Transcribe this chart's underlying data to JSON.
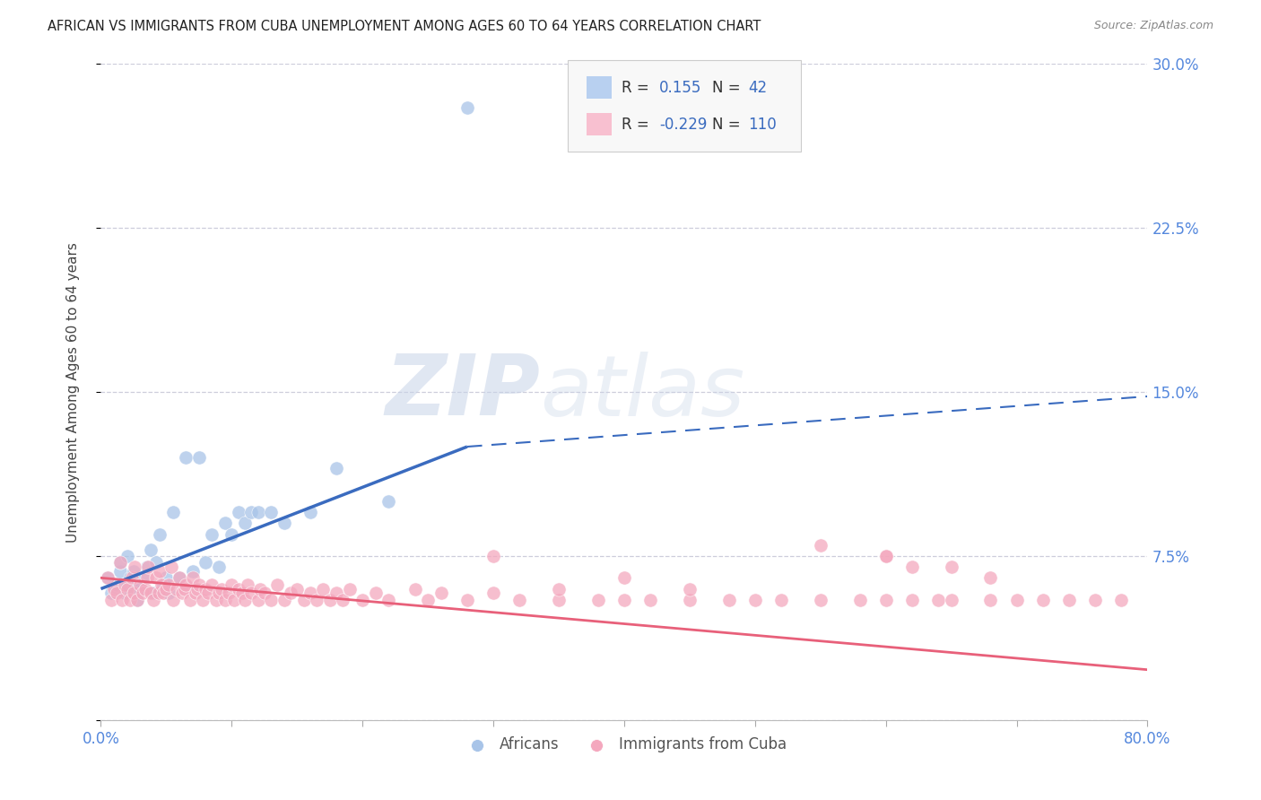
{
  "title": "AFRICAN VS IMMIGRANTS FROM CUBA UNEMPLOYMENT AMONG AGES 60 TO 64 YEARS CORRELATION CHART",
  "source": "Source: ZipAtlas.com",
  "ylabel": "Unemployment Among Ages 60 to 64 years",
  "xlim": [
    0.0,
    0.8
  ],
  "ylim": [
    0.0,
    0.3
  ],
  "yticks": [
    0.0,
    0.075,
    0.15,
    0.225,
    0.3
  ],
  "ytick_labels": [
    "",
    "7.5%",
    "15.0%",
    "22.5%",
    "30.0%"
  ],
  "african_color": "#a8c4e8",
  "cuba_color": "#f4a8be",
  "trend_african_color": "#3a6bbf",
  "trend_cuba_color": "#e8607a",
  "legend_box_color_african": "#b8d0f0",
  "legend_box_color_cuba": "#f8c0d0",
  "R_african": 0.155,
  "N_african": 42,
  "R_cuba": -0.229,
  "N_cuba": 110,
  "af_trend_x0": 0.0,
  "af_trend_y0": 0.06,
  "af_trend_x1": 0.28,
  "af_trend_y1": 0.125,
  "af_trend_dash_x0": 0.28,
  "af_trend_dash_y0": 0.125,
  "af_trend_dash_x1": 0.8,
  "af_trend_dash_y1": 0.148,
  "cu_trend_x0": 0.0,
  "cu_trend_y0": 0.065,
  "cu_trend_x1": 0.8,
  "cu_trend_y1": 0.023,
  "african_x": [
    0.005,
    0.008,
    0.012,
    0.015,
    0.015,
    0.018,
    0.02,
    0.02,
    0.022,
    0.025,
    0.025,
    0.028,
    0.03,
    0.032,
    0.035,
    0.038,
    0.04,
    0.042,
    0.045,
    0.048,
    0.05,
    0.052,
    0.055,
    0.06,
    0.065,
    0.07,
    0.075,
    0.08,
    0.085,
    0.09,
    0.095,
    0.1,
    0.105,
    0.11,
    0.115,
    0.12,
    0.13,
    0.14,
    0.16,
    0.18,
    0.22,
    0.28
  ],
  "african_y": [
    0.065,
    0.058,
    0.062,
    0.068,
    0.072,
    0.058,
    0.062,
    0.075,
    0.065,
    0.06,
    0.068,
    0.055,
    0.06,
    0.065,
    0.07,
    0.078,
    0.058,
    0.072,
    0.085,
    0.062,
    0.065,
    0.058,
    0.095,
    0.065,
    0.12,
    0.068,
    0.12,
    0.072,
    0.085,
    0.07,
    0.09,
    0.085,
    0.095,
    0.09,
    0.095,
    0.095,
    0.095,
    0.09,
    0.095,
    0.115,
    0.1,
    0.28
  ],
  "cuba_x": [
    0.005,
    0.008,
    0.01,
    0.012,
    0.015,
    0.016,
    0.018,
    0.02,
    0.022,
    0.024,
    0.025,
    0.026,
    0.028,
    0.03,
    0.032,
    0.034,
    0.035,
    0.036,
    0.038,
    0.04,
    0.042,
    0.044,
    0.045,
    0.046,
    0.048,
    0.05,
    0.052,
    0.054,
    0.055,
    0.058,
    0.06,
    0.062,
    0.064,
    0.065,
    0.068,
    0.07,
    0.072,
    0.074,
    0.075,
    0.078,
    0.08,
    0.082,
    0.085,
    0.088,
    0.09,
    0.092,
    0.095,
    0.098,
    0.1,
    0.102,
    0.105,
    0.108,
    0.11,
    0.112,
    0.115,
    0.12,
    0.122,
    0.125,
    0.13,
    0.135,
    0.14,
    0.145,
    0.15,
    0.155,
    0.16,
    0.165,
    0.17,
    0.175,
    0.18,
    0.185,
    0.19,
    0.2,
    0.21,
    0.22,
    0.24,
    0.25,
    0.26,
    0.28,
    0.3,
    0.32,
    0.35,
    0.38,
    0.4,
    0.42,
    0.45,
    0.48,
    0.5,
    0.52,
    0.55,
    0.58,
    0.6,
    0.62,
    0.64,
    0.65,
    0.68,
    0.7,
    0.72,
    0.74,
    0.76,
    0.78,
    0.6,
    0.65,
    0.68,
    0.55,
    0.6,
    0.62,
    0.3,
    0.35,
    0.4,
    0.45
  ],
  "cuba_y": [
    0.065,
    0.055,
    0.06,
    0.058,
    0.072,
    0.055,
    0.062,
    0.06,
    0.055,
    0.065,
    0.058,
    0.07,
    0.055,
    0.062,
    0.058,
    0.06,
    0.065,
    0.07,
    0.058,
    0.055,
    0.065,
    0.058,
    0.068,
    0.062,
    0.058,
    0.06,
    0.062,
    0.07,
    0.055,
    0.06,
    0.065,
    0.058,
    0.06,
    0.062,
    0.055,
    0.065,
    0.058,
    0.06,
    0.062,
    0.055,
    0.06,
    0.058,
    0.062,
    0.055,
    0.058,
    0.06,
    0.055,
    0.058,
    0.062,
    0.055,
    0.06,
    0.058,
    0.055,
    0.062,
    0.058,
    0.055,
    0.06,
    0.058,
    0.055,
    0.062,
    0.055,
    0.058,
    0.06,
    0.055,
    0.058,
    0.055,
    0.06,
    0.055,
    0.058,
    0.055,
    0.06,
    0.055,
    0.058,
    0.055,
    0.06,
    0.055,
    0.058,
    0.055,
    0.058,
    0.055,
    0.055,
    0.055,
    0.055,
    0.055,
    0.055,
    0.055,
    0.055,
    0.055,
    0.055,
    0.055,
    0.055,
    0.055,
    0.055,
    0.055,
    0.055,
    0.055,
    0.055,
    0.055,
    0.055,
    0.055,
    0.075,
    0.07,
    0.065,
    0.08,
    0.075,
    0.07,
    0.075,
    0.06,
    0.065,
    0.06
  ],
  "background_color": "#ffffff",
  "grid_color": "#c8c8d8",
  "watermark_zip_color": "#c8d4e8",
  "watermark_atlas_color": "#c8d4e8"
}
